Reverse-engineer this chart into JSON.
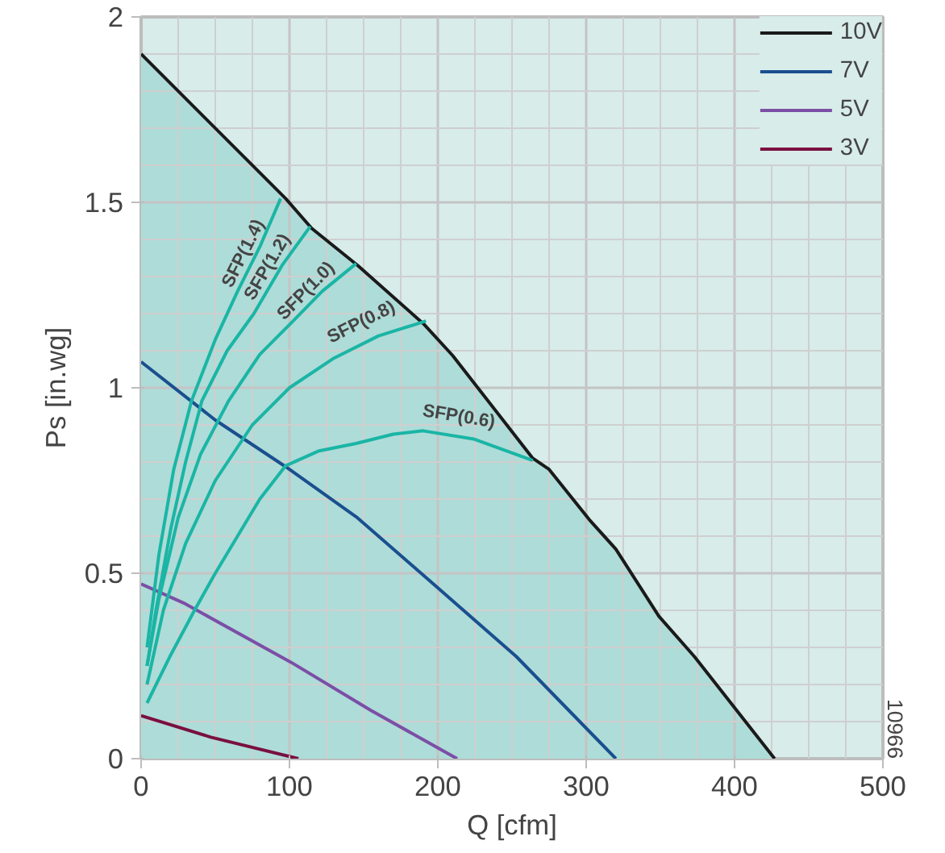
{
  "chart_data": {
    "type": "line",
    "xlabel": "Q [cfm]",
    "ylabel": "Ps [in.wg]",
    "xlim": [
      0,
      500
    ],
    "ylim": [
      0,
      2
    ],
    "xticks": [
      0,
      100,
      200,
      300,
      400,
      500
    ],
    "yticks": [
      0,
      0.5,
      1,
      1.5,
      2
    ],
    "grid": true,
    "legend": "top right",
    "series": [
      {
        "name": "10V",
        "type": "area",
        "color": "#1a1a1a",
        "x": [
          0,
          97.5,
          115,
          146,
          191,
          210,
          264,
          275,
          302,
          320,
          349,
          373,
          427
        ],
        "values": [
          1.9,
          1.51,
          1.43,
          1.33,
          1.17,
          1.087,
          0.81,
          0.78,
          0.645,
          0.565,
          0.384,
          0.275,
          0
        ]
      },
      {
        "name": "7V",
        "color": "#1a4f8f",
        "x": [
          0,
          50,
          97.5,
          145,
          199,
          253,
          320
        ],
        "values": [
          1.07,
          0.913,
          0.787,
          0.652,
          0.464,
          0.275,
          0
        ]
      },
      {
        "name": "5V",
        "color": "#7b4fa6",
        "x": [
          0,
          28.6,
          101,
          155,
          213
        ],
        "values": [
          0.471,
          0.42,
          0.26,
          0.13,
          0
        ]
      },
      {
        "name": "3V",
        "color": "#7a1040",
        "x": [
          0,
          47,
          106
        ],
        "values": [
          0.116,
          0.058,
          0
        ]
      },
      {
        "name": "SFP(1.4)",
        "color": "#1ab5a5",
        "x": [
          4,
          12,
          22,
          34,
          50,
          65,
          80,
          94
        ],
        "values": [
          0.3,
          0.55,
          0.78,
          0.965,
          1.13,
          1.26,
          1.38,
          1.51
        ]
      },
      {
        "name": "SFP(1.2)",
        "color": "#1ab5a5",
        "x": [
          4,
          10,
          20,
          30,
          41,
          58,
          76,
          95,
          114
        ],
        "values": [
          0.25,
          0.4,
          0.62,
          0.8,
          0.965,
          1.1,
          1.2,
          1.33,
          1.435
        ]
      },
      {
        "name": "SFP(1.0)",
        "color": "#1ab5a5",
        "x": [
          4,
          12,
          25,
          40,
          59,
          80,
          101,
          122,
          145
        ],
        "values": [
          0.25,
          0.43,
          0.65,
          0.82,
          0.965,
          1.09,
          1.174,
          1.26,
          1.335
        ]
      },
      {
        "name": "SFP(0.8)",
        "color": "#1ab5a5",
        "x": [
          4,
          15,
          30,
          50,
          75,
          100,
          130,
          160,
          192
        ],
        "values": [
          0.2,
          0.4,
          0.58,
          0.75,
          0.9,
          1.0,
          1.08,
          1.14,
          1.18
        ]
      },
      {
        "name": "SFP(0.6)",
        "color": "#1ab5a5",
        "x": [
          4,
          20,
          36,
          50,
          65,
          80,
          97.5,
          120,
          145,
          170,
          190,
          224,
          264
        ],
        "values": [
          0.15,
          0.28,
          0.4,
          0.5,
          0.6,
          0.7,
          0.79,
          0.83,
          0.85,
          0.875,
          0.884,
          0.862,
          0.804
        ]
      }
    ],
    "annotations": [
      "10966"
    ]
  }
}
